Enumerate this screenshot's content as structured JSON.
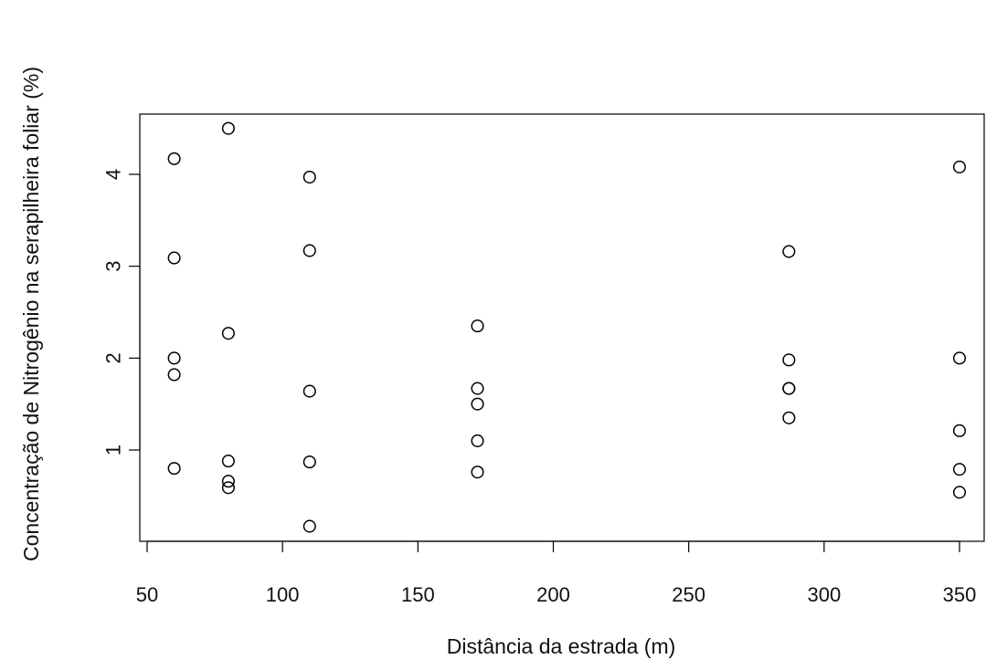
{
  "chart_data": {
    "type": "scatter",
    "xlabel": "Distância da estrada (m)",
    "ylabel": "Concentração de Nitrogênio na serapilheira foliar (%)",
    "xlim": [
      50,
      360
    ],
    "ylim": [
      0,
      4.7
    ],
    "x_ticks": [
      50,
      100,
      150,
      200,
      250,
      300,
      350
    ],
    "y_ticks": [
      1,
      2,
      3,
      4
    ],
    "marker": "open-circle",
    "point_color": "#000000",
    "points": [
      {
        "x": 60,
        "y": 4.17
      },
      {
        "x": 60,
        "y": 3.09
      },
      {
        "x": 60,
        "y": 2.0
      },
      {
        "x": 60,
        "y": 1.82
      },
      {
        "x": 60,
        "y": 0.8
      },
      {
        "x": 80,
        "y": 4.5
      },
      {
        "x": 80,
        "y": 2.27
      },
      {
        "x": 80,
        "y": 0.88
      },
      {
        "x": 80,
        "y": 0.66
      },
      {
        "x": 80,
        "y": 0.59
      },
      {
        "x": 110,
        "y": 3.97
      },
      {
        "x": 110,
        "y": 3.17
      },
      {
        "x": 110,
        "y": 1.64
      },
      {
        "x": 110,
        "y": 0.87
      },
      {
        "x": 110,
        "y": 0.17
      },
      {
        "x": 172,
        "y": 2.35
      },
      {
        "x": 172,
        "y": 1.67
      },
      {
        "x": 172,
        "y": 1.5
      },
      {
        "x": 172,
        "y": 1.1
      },
      {
        "x": 172,
        "y": 0.76
      },
      {
        "x": 287,
        "y": 3.16
      },
      {
        "x": 287,
        "y": 1.98
      },
      {
        "x": 287,
        "y": 1.67
      },
      {
        "x": 287,
        "y": 1.67
      },
      {
        "x": 287,
        "y": 1.35
      },
      {
        "x": 350,
        "y": 4.08
      },
      {
        "x": 350,
        "y": 2.0
      },
      {
        "x": 350,
        "y": 1.21
      },
      {
        "x": 350,
        "y": 0.79
      },
      {
        "x": 350,
        "y": 0.54
      }
    ]
  }
}
